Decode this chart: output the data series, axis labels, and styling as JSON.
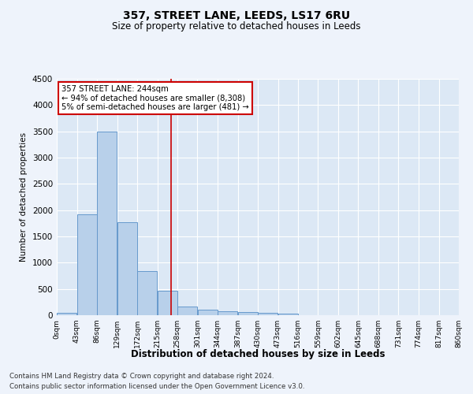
{
  "title": "357, STREET LANE, LEEDS, LS17 6RU",
  "subtitle": "Size of property relative to detached houses in Leeds",
  "xlabel": "Distribution of detached houses by size in Leeds",
  "ylabel": "Number of detached properties",
  "bar_color": "#b8d0ea",
  "bar_edge_color": "#6699cc",
  "vline_color": "#cc0000",
  "annotation_text": "357 STREET LANE: 244sqm\n← 94% of detached houses are smaller (8,308)\n5% of semi-detached houses are larger (481) →",
  "annotation_box_color": "#cc0000",
  "bins": [
    0,
    43,
    86,
    129,
    172,
    215,
    258,
    301,
    344,
    387,
    430,
    473,
    516,
    559,
    602,
    645,
    688,
    731,
    774,
    817,
    860
  ],
  "bar_heights": [
    50,
    1920,
    3490,
    1770,
    840,
    460,
    160,
    100,
    70,
    55,
    40,
    30,
    0,
    0,
    0,
    0,
    0,
    0,
    0,
    0
  ],
  "ylim": [
    0,
    4500
  ],
  "yticks": [
    0,
    500,
    1000,
    1500,
    2000,
    2500,
    3000,
    3500,
    4000,
    4500
  ],
  "background_color": "#eef3fb",
  "plot_background": "#dce8f5",
  "footer_line1": "Contains HM Land Registry data © Crown copyright and database right 2024.",
  "footer_line2": "Contains public sector information licensed under the Open Government Licence v3.0."
}
